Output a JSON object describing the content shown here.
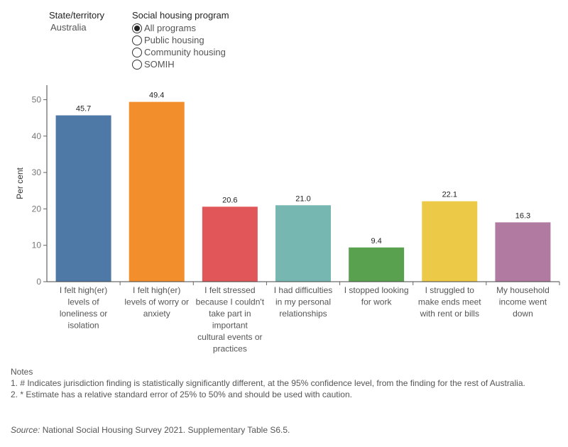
{
  "filters": {
    "state": {
      "title": "State/territory",
      "value": "Australia"
    },
    "program": {
      "title": "Social housing program",
      "options": [
        "All programs",
        "Public housing",
        "Community housing",
        "SOMIH"
      ],
      "selected": "All programs"
    }
  },
  "chart_data": {
    "type": "bar",
    "categories": [
      [
        "I felt high(er)",
        "levels of",
        "loneliness or",
        "isolation"
      ],
      [
        "I felt high(er)",
        "levels of worry or",
        "anxiety"
      ],
      [
        "I felt stressed",
        "because I couldn't",
        "take part in",
        "important",
        "cultural events or",
        "practices"
      ],
      [
        "I had difficulties",
        "in my personal",
        "relationships"
      ],
      [
        "I stopped looking",
        "for work"
      ],
      [
        "I struggled to",
        "make ends meet",
        "with rent or bills"
      ],
      [
        "My household",
        "income went",
        "down"
      ]
    ],
    "values": [
      45.7,
      49.4,
      20.6,
      21.0,
      9.4,
      22.1,
      16.3
    ],
    "value_labels": [
      "45.7",
      "49.4",
      "20.6",
      "21.0",
      "9.4",
      "22.1",
      "16.3"
    ],
    "colors": [
      "#4e79a7",
      "#f28e2b",
      "#e15759",
      "#76b7b2",
      "#59a14f",
      "#edc948",
      "#b07aa1"
    ],
    "title": "",
    "xlabel": "",
    "ylabel": "Per cent",
    "ylim": [
      0,
      54
    ],
    "yticks": [
      0,
      10,
      20,
      30,
      40,
      50
    ],
    "grid": false
  },
  "notes": {
    "heading": "Notes",
    "items": [
      "1. # Indicates jurisdiction finding is statistically significantly different, at the 95% confidence level, from the finding for the rest of Australia.",
      "2. * Estimate has a relative standard error of 25% to 50% and should be used with caution."
    ]
  },
  "source": {
    "label": "Source:",
    "text": " National Social Housing Survey 2021. Supplementary Table S6.5."
  }
}
